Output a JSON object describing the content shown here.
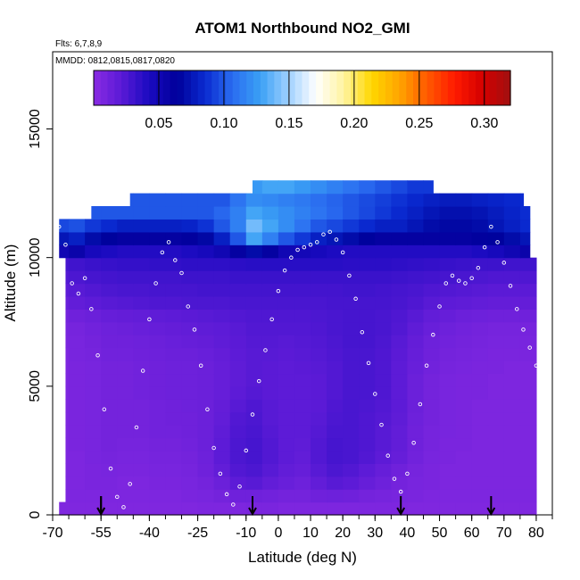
{
  "chart_data": {
    "type": "heatmap",
    "title": "ATOM1 Northbound NO2_GMI",
    "flights_label": "Flts: 6,7,8,9",
    "dates_label": "MMDD: 0812,0815,0817,0820",
    "xlabel": "Latitude (deg N)",
    "ylabel": "Altitude (m)",
    "xlim": [
      -70,
      85
    ],
    "ylim": [
      0,
      18000
    ],
    "x_ticks": [
      -70,
      -55,
      -40,
      -25,
      -10,
      0,
      10,
      20,
      30,
      40,
      50,
      60,
      70,
      80
    ],
    "y_ticks": [
      0,
      5000,
      10000,
      15000
    ],
    "colorbar": {
      "range": [
        0,
        0.32
      ],
      "ticks": [
        0.05,
        0.1,
        0.15,
        0.2,
        0.25,
        0.3
      ],
      "tick_labels": [
        "0.05",
        "0.10",
        "0.15",
        "0.20",
        "0.25",
        "0.30"
      ],
      "colors": [
        "#8a2be2",
        "#5a1ad6",
        "#1a0ac0",
        "#00009a",
        "#0a2ad0",
        "#2a6cf0",
        "#3aa0f5",
        "#9fd0ff",
        "#ffffff",
        "#fff3a0",
        "#ffd700",
        "#ffa500",
        "#ff5a00",
        "#ff1a00",
        "#d40000",
        "#a01010"
      ]
    },
    "field": {
      "lat_centers": [
        -67.5,
        -62.5,
        -57.5,
        -52.5,
        -47.5,
        -42.5,
        -37.5,
        -32.5,
        -27.5,
        -22.5,
        -17.5,
        -12.5,
        -7.5,
        -2.5,
        2.5,
        7.5,
        12.5,
        17.5,
        22.5,
        27.5,
        32.5,
        37.5,
        42.5,
        47.5,
        52.5,
        57.5,
        62.5,
        67.5,
        72.5,
        77.5
      ],
      "alt_centers": [
        250,
        750,
        1250,
        1750,
        2250,
        2750,
        3250,
        3750,
        4250,
        4750,
        5250,
        5750,
        6250,
        6750,
        7250,
        7750,
        8250,
        8750,
        9250,
        9750,
        10250,
        10750,
        11250,
        11750,
        12250,
        12750
      ],
      "values": [
        [
          0.005,
          0.005,
          0.005,
          0.005,
          0.005,
          0.005,
          0.005,
          0.005,
          0.005,
          0.006,
          0.006,
          0.006,
          0.007,
          0.007,
          0.006,
          0.006,
          0.006,
          0.006,
          0.006,
          0.006,
          0.006,
          0.006,
          0.005,
          0.005,
          0.005,
          0.005,
          0.005,
          0.005,
          0.005,
          0.005
        ],
        [
          0.006,
          0.006,
          0.006,
          0.006,
          0.006,
          0.006,
          0.006,
          0.006,
          0.007,
          0.008,
          0.01,
          0.012,
          0.012,
          0.011,
          0.01,
          0.01,
          0.012,
          0.013,
          0.012,
          0.01,
          0.009,
          0.008,
          0.007,
          0.006,
          0.006,
          0.006,
          0.006,
          0.006,
          0.006,
          0.006
        ],
        [
          0.006,
          0.006,
          0.007,
          0.007,
          0.006,
          0.006,
          0.007,
          0.007,
          0.008,
          0.01,
          0.014,
          0.02,
          0.022,
          0.018,
          0.015,
          0.013,
          0.018,
          0.022,
          0.02,
          0.016,
          0.013,
          0.01,
          0.008,
          0.007,
          0.006,
          0.006,
          0.006,
          0.006,
          0.006,
          0.006
        ],
        [
          0.006,
          0.006,
          0.007,
          0.008,
          0.007,
          0.007,
          0.008,
          0.008,
          0.009,
          0.012,
          0.018,
          0.024,
          0.026,
          0.022,
          0.018,
          0.016,
          0.022,
          0.026,
          0.024,
          0.02,
          0.016,
          0.012,
          0.009,
          0.007,
          0.006,
          0.006,
          0.006,
          0.006,
          0.006,
          0.006
        ],
        [
          0.006,
          0.006,
          0.008,
          0.009,
          0.008,
          0.008,
          0.009,
          0.009,
          0.01,
          0.013,
          0.02,
          0.026,
          0.028,
          0.024,
          0.02,
          0.018,
          0.024,
          0.028,
          0.027,
          0.024,
          0.02,
          0.016,
          0.011,
          0.008,
          0.007,
          0.006,
          0.006,
          0.006,
          0.006,
          0.006
        ],
        [
          0.006,
          0.007,
          0.008,
          0.01,
          0.009,
          0.009,
          0.01,
          0.01,
          0.011,
          0.014,
          0.02,
          0.026,
          0.028,
          0.024,
          0.02,
          0.019,
          0.024,
          0.028,
          0.027,
          0.025,
          0.022,
          0.018,
          0.012,
          0.009,
          0.007,
          0.007,
          0.006,
          0.006,
          0.006,
          0.006
        ],
        [
          0.006,
          0.007,
          0.008,
          0.01,
          0.01,
          0.01,
          0.011,
          0.011,
          0.012,
          0.014,
          0.019,
          0.025,
          0.027,
          0.023,
          0.02,
          0.02,
          0.023,
          0.027,
          0.027,
          0.025,
          0.022,
          0.018,
          0.012,
          0.009,
          0.008,
          0.007,
          0.006,
          0.006,
          0.006,
          0.006
        ],
        [
          0.006,
          0.007,
          0.008,
          0.01,
          0.01,
          0.01,
          0.011,
          0.012,
          0.012,
          0.014,
          0.018,
          0.024,
          0.026,
          0.022,
          0.02,
          0.02,
          0.022,
          0.026,
          0.027,
          0.025,
          0.023,
          0.019,
          0.013,
          0.01,
          0.008,
          0.007,
          0.006,
          0.006,
          0.006,
          0.006
        ],
        [
          0.006,
          0.007,
          0.008,
          0.01,
          0.01,
          0.01,
          0.011,
          0.012,
          0.013,
          0.014,
          0.017,
          0.022,
          0.025,
          0.022,
          0.02,
          0.02,
          0.021,
          0.025,
          0.027,
          0.026,
          0.024,
          0.02,
          0.014,
          0.01,
          0.008,
          0.007,
          0.006,
          0.006,
          0.006,
          0.006
        ],
        [
          0.006,
          0.007,
          0.008,
          0.01,
          0.01,
          0.011,
          0.012,
          0.013,
          0.013,
          0.014,
          0.016,
          0.02,
          0.023,
          0.021,
          0.02,
          0.02,
          0.021,
          0.024,
          0.027,
          0.027,
          0.025,
          0.02,
          0.014,
          0.01,
          0.008,
          0.007,
          0.007,
          0.006,
          0.006,
          0.006
        ],
        [
          0.006,
          0.007,
          0.008,
          0.01,
          0.01,
          0.011,
          0.012,
          0.013,
          0.013,
          0.014,
          0.016,
          0.019,
          0.022,
          0.021,
          0.02,
          0.02,
          0.021,
          0.024,
          0.027,
          0.027,
          0.025,
          0.02,
          0.014,
          0.01,
          0.008,
          0.007,
          0.007,
          0.006,
          0.006,
          0.006
        ],
        [
          0.006,
          0.007,
          0.008,
          0.01,
          0.01,
          0.011,
          0.012,
          0.013,
          0.013,
          0.014,
          0.016,
          0.019,
          0.022,
          0.021,
          0.02,
          0.021,
          0.022,
          0.024,
          0.027,
          0.027,
          0.025,
          0.02,
          0.015,
          0.011,
          0.009,
          0.008,
          0.007,
          0.007,
          0.006,
          0.006
        ],
        [
          0.006,
          0.008,
          0.009,
          0.011,
          0.011,
          0.012,
          0.013,
          0.014,
          0.014,
          0.015,
          0.017,
          0.02,
          0.022,
          0.022,
          0.021,
          0.022,
          0.023,
          0.025,
          0.027,
          0.027,
          0.025,
          0.021,
          0.016,
          0.012,
          0.01,
          0.009,
          0.008,
          0.007,
          0.007,
          0.007
        ],
        [
          0.007,
          0.008,
          0.01,
          0.012,
          0.012,
          0.013,
          0.014,
          0.015,
          0.016,
          0.017,
          0.019,
          0.021,
          0.023,
          0.023,
          0.022,
          0.023,
          0.024,
          0.026,
          0.028,
          0.028,
          0.026,
          0.022,
          0.017,
          0.013,
          0.011,
          0.01,
          0.009,
          0.008,
          0.008,
          0.008
        ],
        [
          0.008,
          0.009,
          0.011,
          0.013,
          0.014,
          0.015,
          0.016,
          0.017,
          0.018,
          0.019,
          0.02,
          0.022,
          0.024,
          0.024,
          0.024,
          0.024,
          0.025,
          0.027,
          0.028,
          0.028,
          0.027,
          0.024,
          0.019,
          0.015,
          0.013,
          0.011,
          0.01,
          0.009,
          0.009,
          0.009
        ],
        [
          0.01,
          0.012,
          0.014,
          0.016,
          0.017,
          0.018,
          0.019,
          0.02,
          0.021,
          0.022,
          0.023,
          0.024,
          0.025,
          0.025,
          0.025,
          0.025,
          0.026,
          0.027,
          0.028,
          0.028,
          0.027,
          0.025,
          0.022,
          0.018,
          0.016,
          0.014,
          0.013,
          0.012,
          0.012,
          0.012
        ],
        [
          0.015,
          0.018,
          0.02,
          0.022,
          0.023,
          0.024,
          0.025,
          0.025,
          0.026,
          0.026,
          0.026,
          0.027,
          0.027,
          0.027,
          0.027,
          0.027,
          0.027,
          0.028,
          0.028,
          0.028,
          0.028,
          0.027,
          0.025,
          0.022,
          0.02,
          0.019,
          0.018,
          0.017,
          0.017,
          0.017
        ],
        [
          0.02,
          0.022,
          0.024,
          0.026,
          0.027,
          0.027,
          0.028,
          0.028,
          0.028,
          0.029,
          0.029,
          0.029,
          0.029,
          0.029,
          0.029,
          0.029,
          0.029,
          0.029,
          0.03,
          0.03,
          0.029,
          0.028,
          0.027,
          0.025,
          0.024,
          0.023,
          0.022,
          0.021,
          0.021,
          0.021
        ],
        [
          0.024,
          0.026,
          0.028,
          0.029,
          0.03,
          0.03,
          0.03,
          0.03,
          0.031,
          0.031,
          0.031,
          0.032,
          0.032,
          0.032,
          0.032,
          0.032,
          0.032,
          0.032,
          0.032,
          0.032,
          0.032,
          0.031,
          0.03,
          0.029,
          0.028,
          0.027,
          0.026,
          0.025,
          0.025,
          0.025
        ],
        [
          0.028,
          0.03,
          0.032,
          0.033,
          0.034,
          0.034,
          0.035,
          0.035,
          0.036,
          0.036,
          0.036,
          0.037,
          0.038,
          0.038,
          0.038,
          0.038,
          0.038,
          0.038,
          0.037,
          0.037,
          0.037,
          0.036,
          0.035,
          0.034,
          0.033,
          0.032,
          0.031,
          0.031,
          0.03,
          0.03
        ],
        [
          0.05,
          0.055,
          0.045,
          0.042,
          0.04,
          0.04,
          0.04,
          0.04,
          0.042,
          0.045,
          0.05,
          0.06,
          0.07,
          0.06,
          0.05,
          0.048,
          0.045,
          0.042,
          0.04,
          0.04,
          0.04,
          0.04,
          0.04,
          0.04,
          0.04,
          0.04,
          0.042,
          0.045,
          0.05,
          0.055
        ],
        [
          0.075,
          0.08,
          0.07,
          0.065,
          0.06,
          0.06,
          0.06,
          0.06,
          0.062,
          0.068,
          0.08,
          0.1,
          0.13,
          0.115,
          0.1,
          0.09,
          0.08,
          0.075,
          0.07,
          0.065,
          0.06,
          0.06,
          0.06,
          0.06,
          0.06,
          0.06,
          0.062,
          0.065,
          0.07,
          0.075
        ],
        [
          0.095,
          0.098,
          0.09,
          0.085,
          0.08,
          0.08,
          0.08,
          0.08,
          0.082,
          0.088,
          0.1,
          0.115,
          0.14,
          0.13,
          0.12,
          0.11,
          0.1,
          0.095,
          0.09,
          0.085,
          0.08,
          0.08,
          0.075,
          0.07,
          0.068,
          0.068,
          0.07,
          0.075,
          0.08,
          0.085
        ],
        [
          0.1,
          0.1,
          0.1,
          0.1,
          0.1,
          0.1,
          0.1,
          0.1,
          0.1,
          0.1,
          0.105,
          0.115,
          0.13,
          0.125,
          0.12,
          0.115,
          0.11,
          0.105,
          0.1,
          0.095,
          0.09,
          0.085,
          0.08,
          0.075,
          0.072,
          0.072,
          0.074,
          0.078,
          0.082,
          0.086
        ],
        [
          0.1,
          0.1,
          0.1,
          0.1,
          0.1,
          0.1,
          0.1,
          0.1,
          0.1,
          0.1,
          0.1,
          0.11,
          0.12,
          0.118,
          0.115,
          0.112,
          0.108,
          0.104,
          0.1,
          0.096,
          0.092,
          0.088,
          0.084,
          0.08,
          0.078,
          0.078,
          0.08,
          0.082,
          0.084,
          0.086
        ],
        [
          0.1,
          0.1,
          0.1,
          0.1,
          0.1,
          0.1,
          0.1,
          0.1,
          0.1,
          0.1,
          0.1,
          0.105,
          0.125,
          0.13,
          0.13,
          0.125,
          0.12,
          0.115,
          0.11,
          0.105,
          0.1,
          0.095,
          0.09,
          0.09,
          0.09,
          0.09,
          0.09,
          0.09,
          0.09,
          0.09
        ]
      ],
      "lat_min": [
        -68,
        -66,
        -66,
        -66,
        -66,
        -66,
        -66,
        -66,
        -66,
        -66,
        -66,
        -66,
        -66,
        -66,
        -66,
        -66,
        -66,
        -66,
        -66,
        -66,
        -68,
        -68,
        -68,
        -58,
        -46,
        -8
      ],
      "lat_max": [
        80,
        80,
        80,
        80,
        80,
        80,
        80,
        80,
        80,
        80,
        80,
        80,
        80,
        80,
        80,
        80,
        80,
        80,
        80,
        80,
        78,
        78,
        78,
        78,
        76,
        48
      ]
    },
    "flight_track_points": {
      "lat": [
        -68,
        -66,
        -64,
        -62,
        -60,
        -58,
        -56,
        -54,
        -52,
        -50,
        -48,
        -46,
        -44,
        -42,
        -40,
        -38,
        -36,
        -34,
        -32,
        -30,
        -28,
        -26,
        -24,
        -22,
        -20,
        -18,
        -16,
        -14,
        -12,
        -10,
        -8,
        -6,
        -4,
        -2,
        0,
        2,
        4,
        6,
        8,
        10,
        12,
        14,
        16,
        18,
        20,
        22,
        24,
        26,
        28,
        30,
        32,
        34,
        36,
        38,
        40,
        42,
        44,
        46,
        48,
        50,
        52,
        54,
        56,
        58,
        60,
        62,
        64,
        66,
        68,
        70,
        72,
        74,
        76,
        78,
        80
      ],
      "alt": [
        11200,
        10500,
        9000,
        8600,
        9200,
        8000,
        6200,
        4100,
        1800,
        700,
        300,
        1200,
        3400,
        5600,
        7600,
        9000,
        10200,
        10600,
        9900,
        9400,
        8100,
        7200,
        5800,
        4100,
        2600,
        1600,
        800,
        400,
        1100,
        2500,
        3900,
        5200,
        6400,
        7600,
        8700,
        9500,
        10000,
        10300,
        10400,
        10500,
        10600,
        10900,
        11000,
        10700,
        10200,
        9300,
        8400,
        7100,
        5900,
        4700,
        3500,
        2300,
        1400,
        900,
        1600,
        2800,
        4300,
        5800,
        7000,
        8100,
        9000,
        9300,
        9100,
        9000,
        9200,
        9600,
        10400,
        11200,
        10600,
        9800,
        8900,
        8000,
        7200,
        6500,
        5800
      ]
    },
    "arrows_lat": [
      -55,
      -55,
      -8,
      38,
      66
    ]
  }
}
